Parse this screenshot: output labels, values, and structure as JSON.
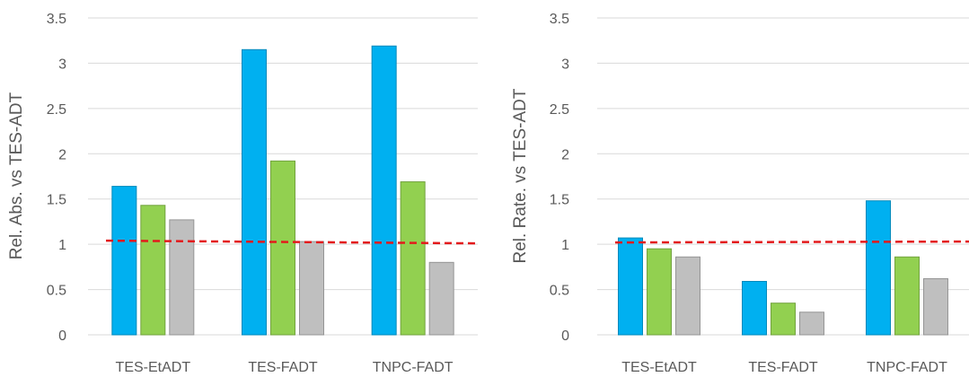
{
  "chart_data": [
    {
      "type": "bar",
      "ylabel": "Rel. Abs. vs TES-ADT",
      "categories": [
        "TES-EtADT",
        "TES-FADT",
        "TNPC-FADT"
      ],
      "series": [
        {
          "values": [
            1.64,
            3.15,
            3.19
          ],
          "color": "#00b0f0"
        },
        {
          "values": [
            1.43,
            1.92,
            1.69
          ],
          "color": "#92d050"
        },
        {
          "values": [
            1.27,
            1.03,
            0.8
          ],
          "color": "#bfbfbf"
        }
      ],
      "reference_line": {
        "y_start": 1.04,
        "y_end": 1.01,
        "color": "#e31a1c"
      },
      "ylim": [
        0,
        3.5
      ],
      "yticks": [
        "0",
        "0.5",
        "1",
        "1.5",
        "2",
        "2.5",
        "3",
        "3.5"
      ],
      "grid": true
    },
    {
      "type": "bar",
      "ylabel": "Rel. Rate. vs TES-ADT",
      "categories": [
        "TES-EtADT",
        "TES-FADT",
        "TNPC-FADT"
      ],
      "series": [
        {
          "values": [
            1.07,
            0.59,
            1.48
          ],
          "color": "#00b0f0"
        },
        {
          "values": [
            0.95,
            0.35,
            0.86
          ],
          "color": "#92d050"
        },
        {
          "values": [
            0.86,
            0.25,
            0.62
          ],
          "color": "#bfbfbf"
        }
      ],
      "reference_line": {
        "y_start": 1.02,
        "y_end": 1.03,
        "color": "#e31a1c"
      },
      "ylim": [
        0,
        3.5
      ],
      "yticks": [
        "0",
        "0.5",
        "1",
        "1.5",
        "2",
        "2.5",
        "3",
        "3.5"
      ],
      "grid": true
    }
  ]
}
